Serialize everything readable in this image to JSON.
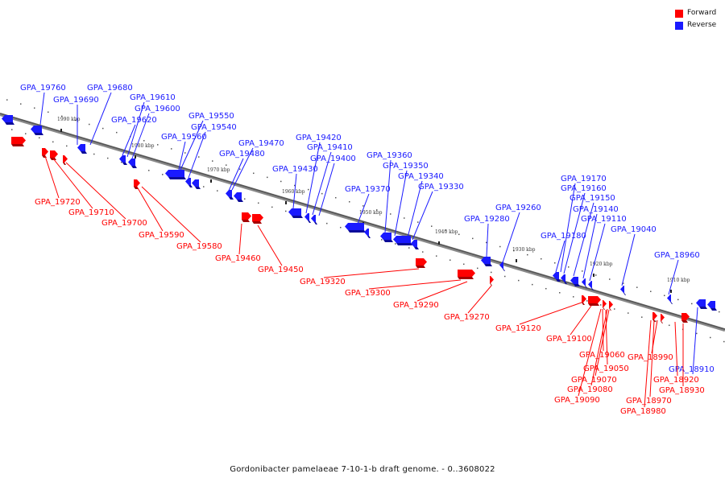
{
  "legend": {
    "forward_label": "Forward",
    "reverse_label": "Reverse",
    "forward_color": "#ff0000",
    "reverse_color": "#1a1aff"
  },
  "caption": "Gordonibacter pamelaeae 7-10-1-b draft genome. - 0..3608022",
  "kbp_ticks": [
    "1990 kbp",
    "1980 kbp",
    "1970 kbp",
    "1960 kbp",
    "1950 kbp",
    "1940 kbp",
    "1930 kbp",
    "1920 kbp",
    "1910 kbp"
  ],
  "reverse_genes": [
    "GPA_19760",
    "GPA_19680",
    "GPA_19690",
    "GPA_19610",
    "GPA_19600",
    "GPA_19620",
    "GPA_19550",
    "GPA_19540",
    "GPA_19560",
    "GPA_19470",
    "GPA_19480",
    "GPA_19420",
    "GPA_19410",
    "GPA_19400",
    "GPA_19430",
    "GPA_19360",
    "GPA_19350",
    "GPA_19340",
    "GPA_19370",
    "GPA_19330",
    "GPA_19260",
    "GPA_19280",
    "GPA_19170",
    "GPA_19160",
    "GPA_19150",
    "GPA_19140",
    "GPA_19110",
    "GPA_19180",
    "GPA_19040",
    "GPA_18960",
    "GPA_18910"
  ],
  "forward_genes": [
    "GPA_19720",
    "GPA_19710",
    "GPA_19700",
    "GPA_19590",
    "GPA_19580",
    "GPA_19460",
    "GPA_19450",
    "GPA_19320",
    "GPA_19300",
    "GPA_19290",
    "GPA_19270",
    "GPA_19120",
    "GPA_19100",
    "GPA_19060",
    "GPA_19050",
    "GPA_19070",
    "GPA_19080",
    "GPA_19090",
    "GPA_18990",
    "GPA_18920",
    "GPA_18930",
    "GPA_18970",
    "GPA_18980"
  ]
}
